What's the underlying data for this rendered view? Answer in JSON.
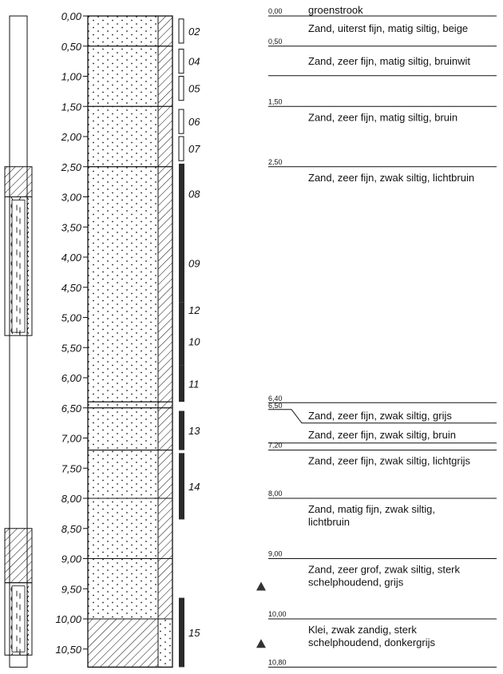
{
  "depth_axis": {
    "ticks": [
      "0,00",
      "0,50",
      "1,00",
      "1,50",
      "2,00",
      "2,50",
      "3,00",
      "3,50",
      "4,00",
      "4,50",
      "5,00",
      "5,50",
      "6,00",
      "6,50",
      "7,00",
      "7,50",
      "8,00",
      "8,50",
      "9,00",
      "9,50",
      "10,00",
      "10,50"
    ]
  },
  "layers": [
    {
      "top": 0.0,
      "bottom": 0.5,
      "soil": "sand"
    },
    {
      "top": 0.5,
      "bottom": 1.5,
      "soil": "sand"
    },
    {
      "top": 1.5,
      "bottom": 2.5,
      "soil": "sand"
    },
    {
      "top": 2.5,
      "bottom": 6.4,
      "soil": "sand"
    },
    {
      "top": 6.4,
      "bottom": 6.5,
      "soil": "sand"
    },
    {
      "top": 6.5,
      "bottom": 7.2,
      "soil": "sand"
    },
    {
      "top": 7.2,
      "bottom": 8.0,
      "soil": "sand"
    },
    {
      "top": 8.0,
      "bottom": 9.0,
      "soil": "sand"
    },
    {
      "top": 9.0,
      "bottom": 10.0,
      "soil": "sand"
    },
    {
      "top": 10.0,
      "bottom": 10.8,
      "soil": "clay"
    }
  ],
  "samples": [
    {
      "label": "02",
      "top": 0.05,
      "bottom": 0.45,
      "type": "disturbed"
    },
    {
      "label": "04",
      "top": 0.55,
      "bottom": 0.95,
      "type": "disturbed"
    },
    {
      "label": "05",
      "top": 1.0,
      "bottom": 1.4,
      "type": "disturbed"
    },
    {
      "label": "06",
      "top": 1.55,
      "bottom": 1.95,
      "type": "disturbed"
    },
    {
      "label": "07",
      "top": 2.0,
      "bottom": 2.4,
      "type": "disturbed"
    },
    {
      "label": "08",
      "top": 2.45,
      "bottom": 3.45,
      "type": "core"
    },
    {
      "label": "09",
      "top": 3.45,
      "bottom": 4.75,
      "type": "core"
    },
    {
      "label": "12",
      "top": 4.75,
      "bottom": 5.0,
      "type": "core"
    },
    {
      "label": "10",
      "top": 5.0,
      "bottom": 5.8,
      "type": "core"
    },
    {
      "label": "11",
      "top": 5.8,
      "bottom": 6.4,
      "type": "core"
    },
    {
      "label": "13",
      "top": 6.55,
      "bottom": 7.2,
      "type": "core"
    },
    {
      "label": "14",
      "top": 7.25,
      "bottom": 8.35,
      "type": "core"
    },
    {
      "label": "15",
      "top": 9.65,
      "bottom": 10.8,
      "type": "core"
    }
  ],
  "descriptions": [
    {
      "depth": "0,00",
      "depth_m": 0.0,
      "text": [
        "groenstrook"
      ]
    },
    {
      "depth": "0,50",
      "depth_m": 0.5,
      "text": [
        "Zand, uiterst fijn, matig siltig, beige"
      ]
    },
    {
      "depth": "",
      "depth_m": 0.5,
      "text": [
        "Zand, zeer fijn, matig siltig, bruinwit"
      ]
    },
    {
      "depth": "1,50",
      "depth_m": 1.5,
      "text": [
        "Zand, zeer fijn, matig siltig, bruin"
      ]
    },
    {
      "depth": "2,50",
      "depth_m": 2.5,
      "text": [
        "Zand, zeer fijn, zwak siltig, lichtbruin"
      ]
    },
    {
      "depth": "6,40",
      "depth_m": 6.4,
      "text": []
    },
    {
      "depth": "6,50",
      "depth_m": 6.5,
      "text": [
        "Zand, zeer fijn, zwak siltig, grijs"
      ]
    },
    {
      "depth": "",
      "depth_m": 6.5,
      "text": [
        "Zand, zeer fijn, zwak siltig, bruin"
      ]
    },
    {
      "depth": "7,20",
      "depth_m": 7.2,
      "text": [
        "Zand, zeer fijn, zwak siltig, lichtgrijs"
      ]
    },
    {
      "depth": "8,00",
      "depth_m": 8.0,
      "text": [
        "Zand, matig fijn, zwak siltig,",
        "lichtbruin"
      ]
    },
    {
      "depth": "9,00",
      "depth_m": 9.0,
      "text": [
        "Zand, zeer grof, zwak siltig, sterk",
        "schelphoudend, grijs"
      ]
    },
    {
      "depth": "10,00",
      "depth_m": 10.0,
      "text": [
        "Klei, zwak zandig, sterk",
        "schelphoudend, donkergrijs"
      ]
    },
    {
      "depth": "10,80",
      "depth_m": 10.8,
      "text": []
    }
  ],
  "shell_markers": [
    9.45,
    10.4
  ],
  "well": {
    "filters": [
      {
        "top": 3.0,
        "bottom": 5.3
      },
      {
        "top": 9.4,
        "bottom": 10.6
      }
    ],
    "seals": [
      {
        "top": 2.5,
        "bottom": 3.0
      },
      {
        "top": 8.5,
        "bottom": 9.4
      }
    ]
  }
}
